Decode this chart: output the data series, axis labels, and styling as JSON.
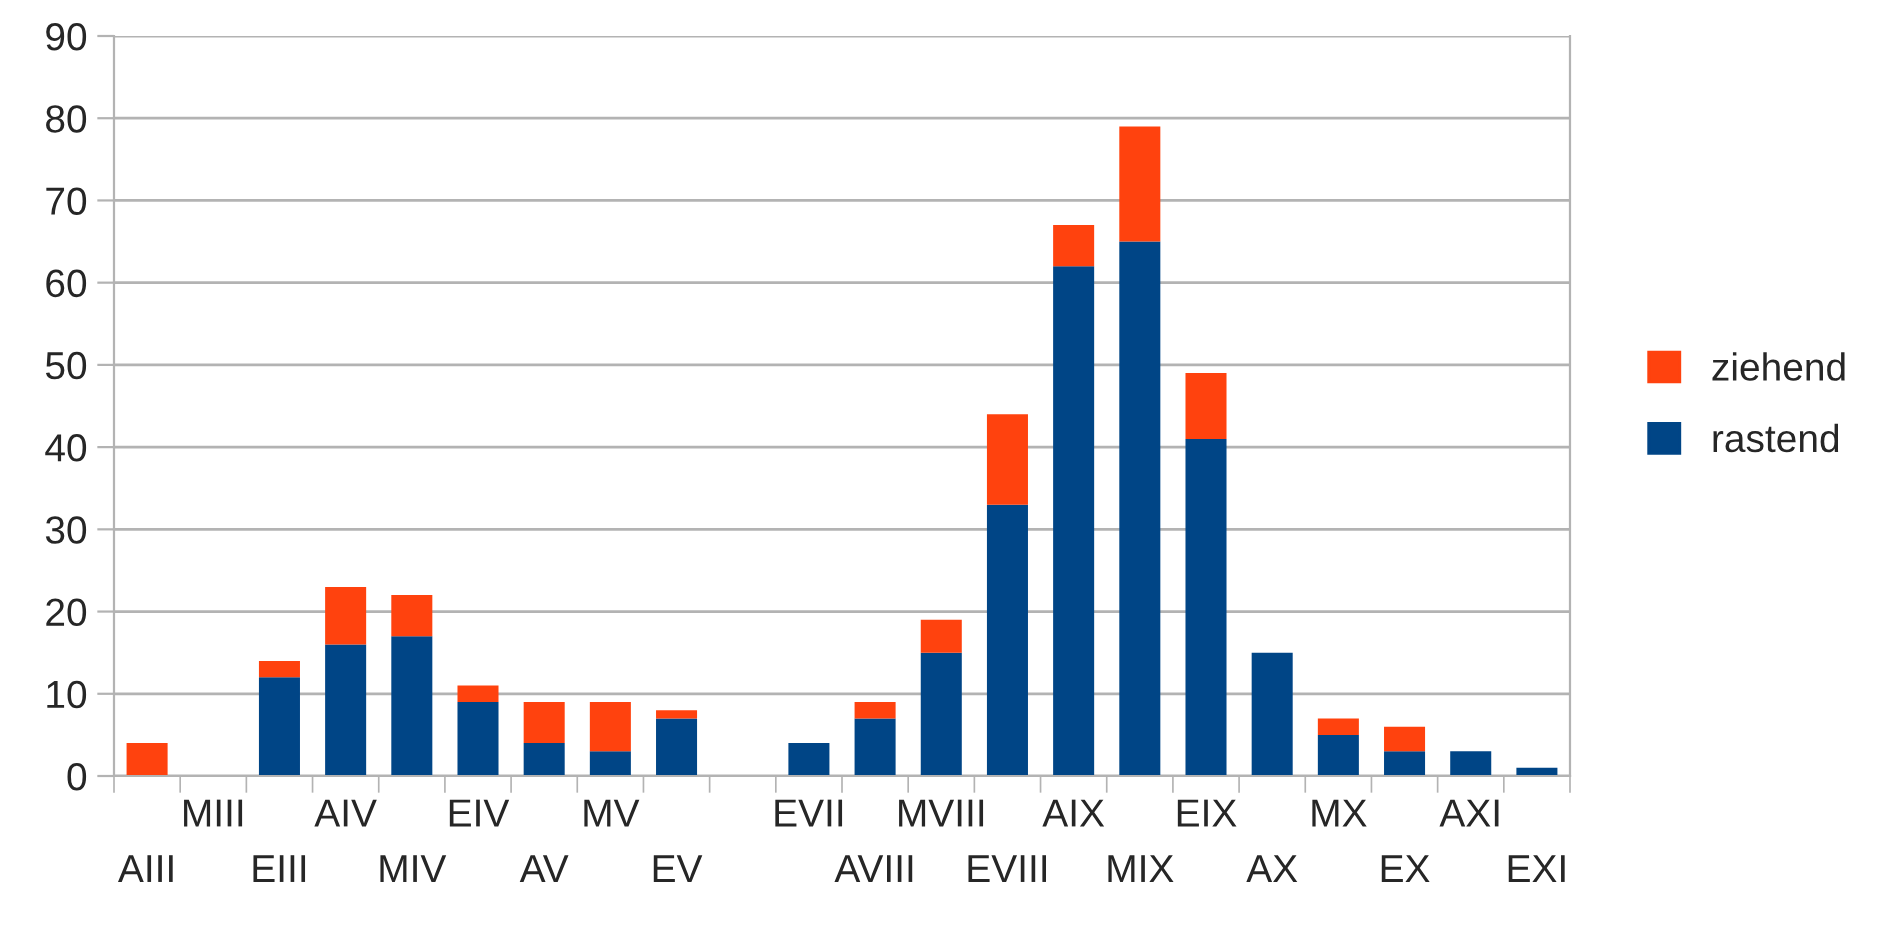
{
  "chart_data": {
    "type": "bar",
    "stacked": true,
    "categories": [
      "AIII",
      "MIII",
      "EIII",
      "AIV",
      "MIV",
      "EIV",
      "AV",
      "MV",
      "EV",
      null,
      "EVII",
      "AVIII",
      "MVIII",
      "EVIII",
      "AIX",
      "MIX",
      "EIX",
      "AX",
      "MX",
      "EX",
      "AXI",
      "EXI"
    ],
    "series": [
      {
        "name": "rastend",
        "color": "#004586",
        "values": [
          0,
          0,
          12,
          16,
          17,
          9,
          4,
          3,
          7,
          0,
          4,
          7,
          15,
          33,
          62,
          65,
          41,
          15,
          5,
          3,
          3,
          1
        ]
      },
      {
        "name": "ziehend",
        "color": "#ff420e",
        "values": [
          4,
          0,
          2,
          7,
          5,
          2,
          5,
          6,
          1,
          0,
          0,
          2,
          4,
          11,
          5,
          14,
          8,
          0,
          2,
          3,
          0,
          0
        ]
      }
    ],
    "ylim": [
      0,
      90
    ],
    "yticks": [
      0,
      10,
      20,
      30,
      40,
      50,
      60,
      70,
      80,
      90
    ],
    "grid": "y",
    "legend": "right"
  }
}
